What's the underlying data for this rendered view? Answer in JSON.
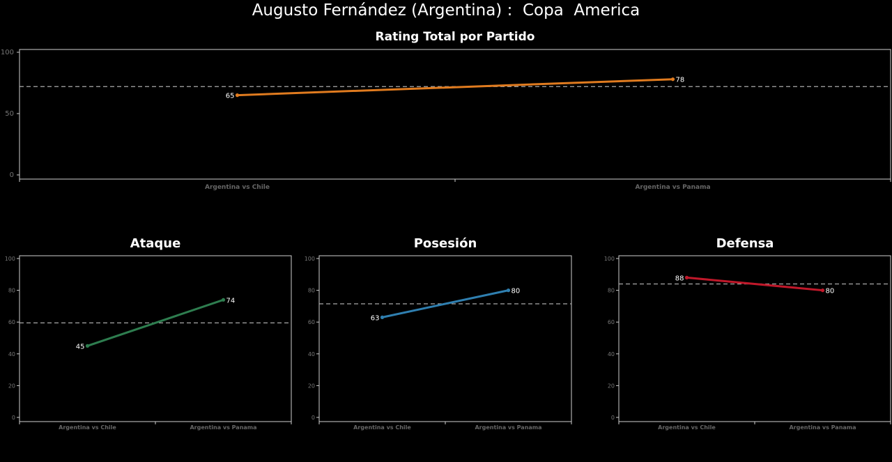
{
  "header": {
    "title": "Augusto Fernández (Argentina) :  Copa  America"
  },
  "chart_data": [
    {
      "id": "total",
      "type": "line",
      "title": "Rating Total por Partido",
      "categories": [
        "Argentina vs Chile",
        "Argentina vs Panama"
      ],
      "values": [
        65,
        78
      ],
      "reference_line": 72,
      "ylim": [
        0,
        100
      ],
      "yticks": [
        0,
        50,
        100
      ],
      "color": "#e07b1f",
      "grid": false
    },
    {
      "id": "ataque",
      "type": "line",
      "title": "Ataque",
      "categories": [
        "Argentina vs Chile",
        "Argentina vs Panama"
      ],
      "values": [
        45,
        74
      ],
      "reference_line": 59.5,
      "ylim": [
        0,
        100
      ],
      "yticks": [
        0,
        20,
        40,
        60,
        80,
        100
      ],
      "color": "#2e7d4f",
      "grid": false
    },
    {
      "id": "posesion",
      "type": "line",
      "title": "Posesión",
      "categories": [
        "Argentina vs Chile",
        "Argentina vs Panama"
      ],
      "values": [
        63,
        80
      ],
      "reference_line": 71.5,
      "ylim": [
        0,
        100
      ],
      "yticks": [
        0,
        20,
        40,
        60,
        80,
        100
      ],
      "color": "#2f7fb0",
      "grid": false
    },
    {
      "id": "defensa",
      "type": "line",
      "title": "Defensa",
      "categories": [
        "Argentina vs Chile",
        "Argentina vs Panama"
      ],
      "values": [
        88,
        80
      ],
      "reference_line": 84,
      "ylim": [
        0,
        100
      ],
      "yticks": [
        0,
        20,
        40,
        60,
        80,
        100
      ],
      "color": "#c0182a",
      "grid": false
    }
  ]
}
